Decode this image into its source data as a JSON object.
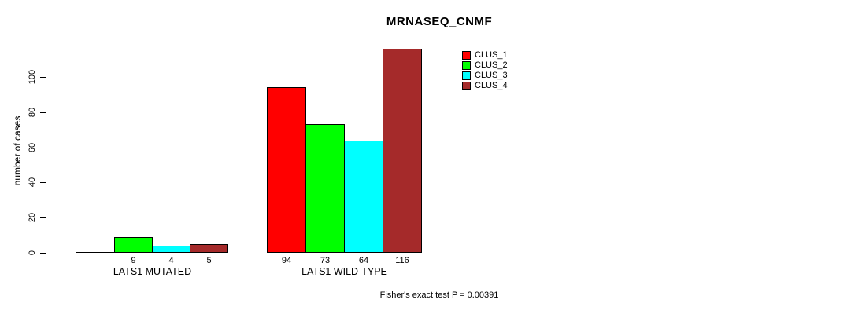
{
  "chart_data": {
    "type": "bar",
    "title": "MRNASEQ_CNMF",
    "ylabel": "number of cases",
    "xlabel": "",
    "categories": [
      "LATS1 MUTATED",
      "LATS1 WILD-TYPE"
    ],
    "series": [
      {
        "name": "CLUS_1",
        "color": "#ff0000",
        "values": [
          0,
          94
        ]
      },
      {
        "name": "CLUS_2",
        "color": "#00ff00",
        "values": [
          9,
          73
        ]
      },
      {
        "name": "CLUS_3",
        "color": "#00ffff",
        "values": [
          4,
          64
        ]
      },
      {
        "name": "CLUS_4",
        "color": "#a52a2a",
        "values": [
          5,
          116
        ]
      }
    ],
    "yticks": [
      0,
      20,
      40,
      60,
      80,
      100
    ],
    "ylim": [
      0,
      116
    ],
    "grid": false,
    "bar_value_labels": true,
    "zero_value_labels_hidden": true,
    "legend_position": "top-right",
    "legend_entries": [
      "CLUS_1",
      "CLUS_2",
      "CLUS_3",
      "CLUS_4"
    ],
    "annotation": "Fisher's exact test P = 0.00391",
    "text_color": "#000000",
    "bar_border_color": "#000000"
  }
}
